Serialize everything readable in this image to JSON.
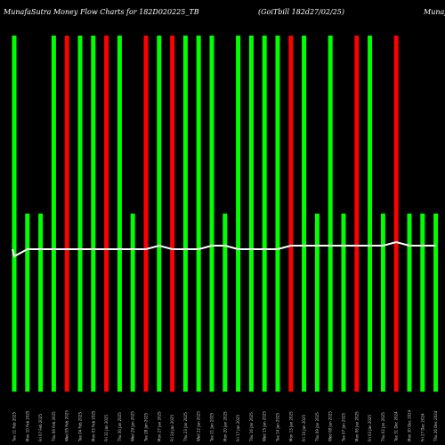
{
  "chart_data": {
    "type": "bar",
    "title_left": "MunafaSutra Money Flow Charts for 182D020225_TB",
    "title_mid": "(GoiTbill 182d27/02/25)",
    "title_right": "Munafa",
    "categories": [
      "Tue 11 Feb 2025",
      "Mon 10 Feb 2025",
      "Fri 07 Feb 2025",
      "Thu 06 Feb 2025",
      "Wed 05 Feb 2025",
      "Tue 04 Feb 2025",
      "Mon 03 Feb 2025",
      "Fri 31 Jan 2025",
      "Thu 30 Jan 2025",
      "Wed 29 Jan 2025",
      "Tue 28 Jan 2025",
      "Mon 27 Jan 2025",
      "Fri 24 Jan 2025",
      "Thu 23 Jan 2025",
      "Wed 22 Jan 2025",
      "Tue 21 Jan 2025",
      "Mon 20 Jan 2025",
      "Fri 17 Jan 2025",
      "Thu 16 Jan 2025",
      "Wed 15 Jan 2025",
      "Tue 14 Jan 2025",
      "Mon 13 Jan 2025",
      "Fri 10 Jan 2025",
      "Thu 09 Jan 2025",
      "Wed 08 Jan 2025",
      "Tue 07 Jan 2025",
      "Mon 06 Jan 2025",
      "Fri 03 Jan 2025",
      "Thu 02 Jan 2025",
      "Tue 31 Dec 2024",
      "Mon 30 Dec 2024",
      "Fri 27 Dec 2024",
      "Thu 26 Dec 2024"
    ],
    "series": [
      {
        "values": [
          100,
          50,
          50,
          100,
          100,
          100,
          100,
          100,
          100,
          50,
          100,
          100,
          100,
          100,
          100,
          100,
          50,
          100,
          100,
          100,
          100,
          100,
          100,
          50,
          100,
          50,
          100,
          100,
          50,
          100,
          50,
          50,
          50
        ],
        "colors": [
          "green",
          "green",
          "green",
          "green",
          "red",
          "green",
          "green",
          "red",
          "green",
          "green",
          "red",
          "green",
          "red",
          "green",
          "green",
          "green",
          "green",
          "green",
          "green",
          "green",
          "green",
          "red",
          "green",
          "green",
          "green",
          "green",
          "red",
          "green",
          "green",
          "red",
          "green",
          "green",
          "green"
        ]
      },
      {
        "values": [
          0,
          0,
          0,
          0,
          0,
          0,
          0,
          0,
          0,
          0,
          0,
          0,
          0,
          0,
          0,
          0,
          0,
          0,
          0,
          0,
          0,
          0,
          0,
          0,
          0,
          0,
          0,
          0,
          0,
          0,
          0,
          0,
          0
        ],
        "color": "orange"
      }
    ],
    "price_line": [
      62,
      60,
      60,
      60,
      60,
      60,
      60,
      60,
      60,
      60,
      60,
      59,
      60,
      60,
      60,
      59,
      59,
      60,
      60,
      60,
      60,
      59,
      59,
      59,
      59,
      59,
      59,
      59,
      59,
      58,
      59,
      59,
      59
    ],
    "price_line_start": 40,
    "ylim": [
      0,
      100
    ],
    "colors": {
      "green": "#00ff00",
      "red": "#ff0000",
      "orange": "#b35900",
      "line": "#ffffff",
      "background": "#000000"
    }
  }
}
